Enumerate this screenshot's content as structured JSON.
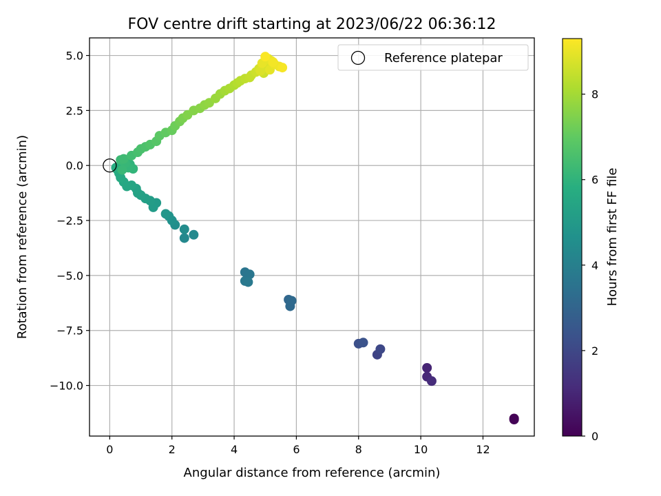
{
  "chart_data": {
    "type": "scatter",
    "title": "FOV centre drift starting at 2023/06/22 06:36:12",
    "xlabel": "Angular distance from reference (arcmin)",
    "ylabel": "Rotation from reference (arcmin)",
    "xlim": [
      -0.65,
      13.65
    ],
    "ylim": [
      -12.3,
      5.8
    ],
    "xticks": [
      0,
      2,
      4,
      6,
      8,
      10,
      12
    ],
    "yticks": [
      5.0,
      2.5,
      0.0,
      -2.5,
      -5.0,
      -7.5,
      -10.0
    ],
    "xtick_labels": [
      "0",
      "2",
      "4",
      "6",
      "8",
      "10",
      "12"
    ],
    "ytick_labels": [
      "5.0",
      "2.5",
      "0.0",
      "−2.5",
      "−5.0",
      "−7.5",
      "−10.0"
    ],
    "grid": true,
    "legend": {
      "placement": "top-right",
      "entries": [
        "Reference platepar"
      ]
    },
    "colorbar": {
      "label": "Hours from first FF file",
      "range": [
        0,
        9.3
      ],
      "ticks": [
        0,
        2,
        4,
        6,
        8
      ],
      "tick_labels": [
        "0",
        "2",
        "4",
        "6",
        "8"
      ],
      "colormap": "viridis"
    },
    "reference_point": {
      "x": 0,
      "y": 0,
      "label": "Reference platepar"
    },
    "series": [
      {
        "x": [
          13.0,
          13.0,
          10.2,
          10.2,
          10.35,
          8.6,
          8.7,
          8.0,
          8.15,
          5.75,
          5.8,
          5.85,
          4.35,
          4.5,
          4.35,
          4.45,
          2.4,
          2.7,
          2.4,
          2.1,
          2.0,
          1.9,
          1.8,
          1.5,
          1.4,
          1.3,
          1.15,
          1.0,
          0.9,
          0.85,
          0.7,
          0.55,
          0.45,
          0.35,
          0.3,
          0.25,
          0.2,
          0.3,
          0.35,
          0.45,
          0.55,
          0.65,
          0.75,
          0.6,
          0.5,
          0.4,
          0.35,
          0.45,
          0.7,
          0.9,
          1.0,
          1.15,
          1.3,
          1.5,
          1.6,
          1.8,
          2.0,
          2.1,
          2.25,
          2.35,
          2.5,
          2.7,
          2.9,
          3.05,
          3.2,
          3.4,
          3.55,
          3.7,
          3.85,
          4.0,
          4.1,
          4.2,
          4.35,
          4.5,
          4.55,
          4.7,
          4.8,
          4.9,
          5.0,
          5.05,
          5.1,
          5.2,
          5.3,
          5.45,
          5.55,
          5.0,
          4.9,
          4.85,
          4.95,
          5.15,
          5.25
        ],
        "y": [
          -11.5,
          -11.55,
          -9.2,
          -9.6,
          -9.8,
          -8.6,
          -8.35,
          -8.1,
          -8.05,
          -6.1,
          -6.4,
          -6.15,
          -4.85,
          -4.95,
          -5.25,
          -5.3,
          -3.3,
          -3.15,
          -2.9,
          -2.7,
          -2.5,
          -2.3,
          -2.2,
          -1.7,
          -1.9,
          -1.6,
          -1.5,
          -1.35,
          -1.25,
          -1.05,
          -0.9,
          -0.95,
          -0.75,
          -0.55,
          -0.35,
          -0.2,
          -0.1,
          -0.05,
          0.05,
          0.2,
          0.15,
          0.05,
          -0.15,
          -0.1,
          0.1,
          -0.2,
          0.25,
          0.3,
          0.45,
          0.6,
          0.75,
          0.85,
          0.95,
          1.1,
          1.35,
          1.5,
          1.6,
          1.8,
          2.0,
          2.15,
          2.3,
          2.5,
          2.6,
          2.75,
          2.85,
          3.05,
          3.25,
          3.4,
          3.5,
          3.65,
          3.75,
          3.85,
          3.95,
          4.0,
          4.1,
          4.25,
          4.4,
          4.55,
          4.7,
          4.8,
          4.85,
          4.75,
          4.6,
          4.5,
          4.45,
          4.95,
          4.65,
          4.3,
          4.2,
          4.35,
          4.7
        ],
        "hours": [
          0.0,
          0.05,
          0.95,
          1.05,
          1.15,
          1.9,
          2.0,
          2.25,
          2.35,
          3.1,
          3.15,
          3.2,
          3.6,
          3.65,
          3.7,
          3.75,
          4.3,
          4.35,
          4.45,
          4.55,
          4.65,
          4.75,
          4.85,
          5.0,
          5.05,
          5.1,
          5.2,
          5.25,
          5.3,
          5.35,
          5.45,
          5.5,
          5.55,
          5.6,
          5.65,
          5.7,
          5.75,
          5.8,
          5.85,
          5.9,
          5.95,
          6.0,
          6.05,
          6.1,
          6.15,
          6.2,
          6.25,
          6.3,
          6.4,
          6.5,
          6.55,
          6.6,
          6.7,
          6.8,
          6.9,
          7.0,
          7.1,
          7.2,
          7.3,
          7.4,
          7.5,
          7.55,
          7.6,
          7.7,
          7.75,
          7.85,
          7.9,
          8.0,
          8.1,
          8.15,
          8.25,
          8.3,
          8.4,
          8.45,
          8.5,
          8.6,
          8.7,
          8.75,
          8.8,
          8.85,
          8.9,
          9.0,
          9.05,
          9.1,
          9.2,
          9.25,
          9.0,
          8.8,
          8.6,
          8.95,
          9.15
        ]
      }
    ]
  }
}
